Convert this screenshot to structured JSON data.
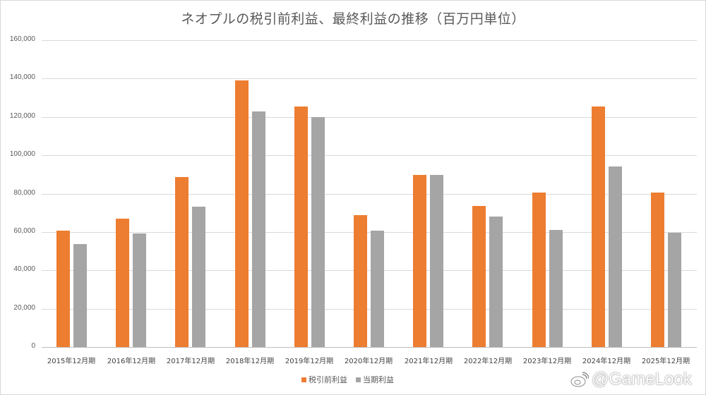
{
  "title": "ネオプルの税引前利益、最終利益の推移（百万円単位）",
  "colors": {
    "pretax": "#ed7d31",
    "net": "#a5a5a5"
  },
  "y_axis": {
    "ticks": [
      "0",
      "20,000",
      "40,000",
      "60,000",
      "80,000",
      "100,000",
      "120,000",
      "140,000",
      "160,000"
    ]
  },
  "legend": {
    "items": [
      {
        "label": "税引前利益",
        "color": "#ed7d31"
      },
      {
        "label": "当期利益",
        "color": "#a5a5a5"
      }
    ]
  },
  "watermark": {
    "text": "@GameLook",
    "icon": "weibo-icon"
  },
  "chart_data": {
    "type": "bar",
    "title": "ネオプルの税引前利益、最終利益の推移（百万円単位）",
    "xlabel": "",
    "ylabel": "",
    "ylim": [
      0,
      160000
    ],
    "grid": true,
    "legend_position": "bottom",
    "categories": [
      "2015年12月期",
      "2016年12月期",
      "2017年12月期",
      "2018年12月期",
      "2019年12月期",
      "2020年12月期",
      "2021年12月期",
      "2022年12月期",
      "2023年12月期",
      "2024年12月期",
      "2025年12月期"
    ],
    "series": [
      {
        "name": "税引前利益",
        "color": "#ed7d31",
        "values": [
          60800,
          67000,
          88600,
          139000,
          125400,
          68700,
          89700,
          73500,
          80500,
          125400,
          80500
        ]
      },
      {
        "name": "当期利益",
        "color": "#a5a5a5",
        "values": [
          53700,
          59300,
          73200,
          122800,
          119900,
          60700,
          89700,
          68000,
          61000,
          94100,
          59600
        ]
      }
    ]
  }
}
